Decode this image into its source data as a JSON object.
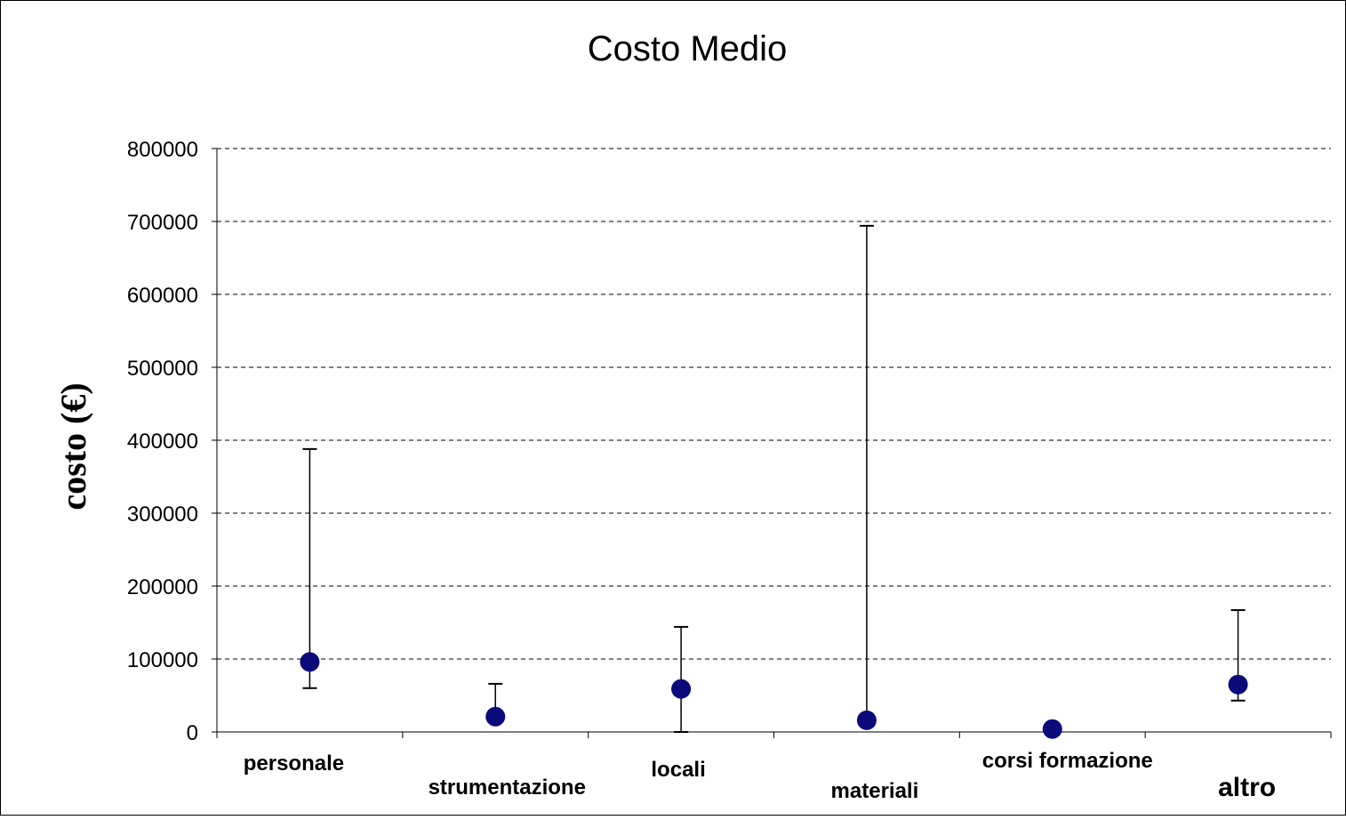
{
  "chart_data": {
    "type": "scatter",
    "title": "Costo Medio",
    "xlabel": "",
    "ylabel": "costo (€)",
    "ylim": [
      0,
      800000
    ],
    "yticks": [
      0,
      100000,
      200000,
      300000,
      400000,
      500000,
      600000,
      700000,
      800000
    ],
    "ytick_labels": [
      "0",
      "100000",
      "200000",
      "300000",
      "400000",
      "500000",
      "600000",
      "700000",
      "800000"
    ],
    "grid": "dashed horizontal",
    "legend": "none",
    "categories": [
      "personale",
      "strumentazione",
      "locali",
      "materiali",
      "corsi formazione",
      "altro"
    ],
    "series": [
      {
        "values": [
          96000,
          21000,
          59000,
          16000,
          4000,
          65000
        ],
        "error_low": [
          60000,
          21000,
          0,
          16000,
          4000,
          43000
        ],
        "error_high": [
          388000,
          66000,
          144000,
          694000,
          4000,
          167000
        ],
        "marker_color": "#0a0a7a"
      }
    ],
    "colors": {
      "marker": "#0a0a7a",
      "error_bar": "#000000",
      "grid": "#000000",
      "frame": "#000000"
    }
  }
}
